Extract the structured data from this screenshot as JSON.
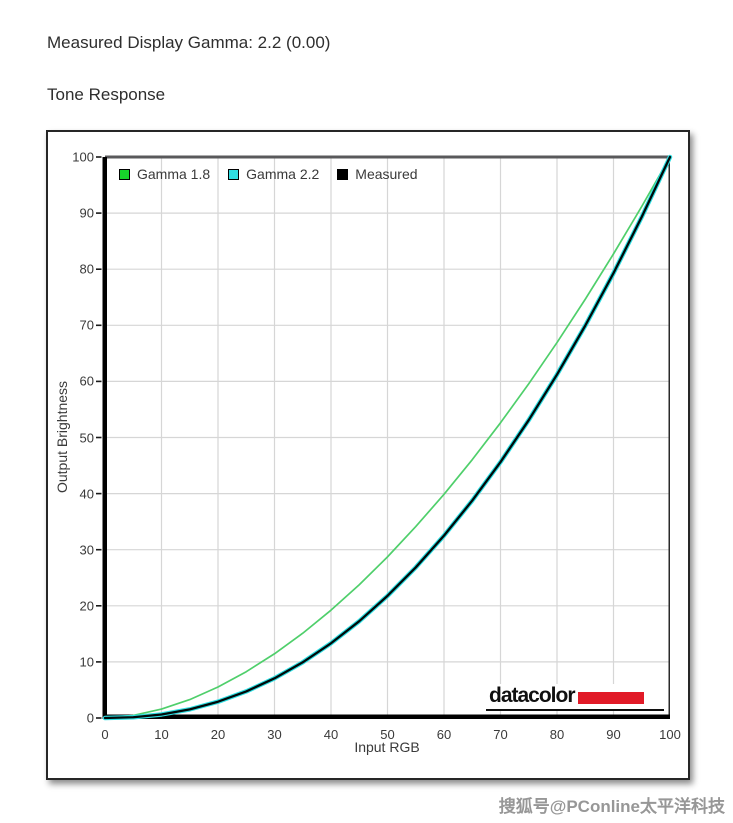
{
  "page": {
    "title": "Measured Display Gamma: 2.2 (0.00)",
    "subtitle": "Tone Response",
    "watermark": "搜狐号@PConline太平洋科技"
  },
  "colors": {
    "grid": "#d6d6d6",
    "spine_top": "#59595b",
    "spine_right": "#2a2a2a",
    "spine_left": "#000000",
    "spine_bottom": "#000000",
    "tick_mark": "#1a1a1a",
    "text": "#3a3a3a"
  },
  "chart_data": {
    "type": "line",
    "title": "Tone Response",
    "xlabel": "Input RGB",
    "ylabel": "Output Brightness",
    "xlim": [
      0,
      100
    ],
    "ylim": [
      0,
      100
    ],
    "grid": true,
    "legend_position": "top-left inside plot",
    "xticks": [
      0,
      10,
      20,
      30,
      40,
      50,
      60,
      70,
      80,
      90,
      100
    ],
    "yticks": [
      0,
      10,
      20,
      30,
      40,
      50,
      60,
      70,
      80,
      90,
      100
    ],
    "x": [
      0,
      5,
      10,
      15,
      20,
      25,
      30,
      35,
      40,
      45,
      50,
      55,
      60,
      65,
      70,
      75,
      80,
      85,
      90,
      95,
      100
    ],
    "series": [
      {
        "name": "Gamma 1.8",
        "gamma": 1.8,
        "swatch_color": "#17d52b",
        "line_color": "#4fcf6b",
        "line_width": 1.7,
        "values": [
          0,
          0.46,
          1.59,
          3.28,
          5.52,
          8.25,
          11.45,
          15.11,
          19.22,
          23.75,
          28.72,
          34.12,
          39.87,
          46.05,
          52.62,
          59.58,
          66.92,
          74.64,
          82.73,
          91.18,
          100
        ]
      },
      {
        "name": "Gamma 2.2",
        "gamma": 2.2,
        "swatch_color": "#2fdee2",
        "line_color": "#2edfe3",
        "line_width": 4.5,
        "values": [
          0,
          0.14,
          0.63,
          1.54,
          2.9,
          4.74,
          7.07,
          9.93,
          13.32,
          17.26,
          21.77,
          26.84,
          32.51,
          38.76,
          45.62,
          53.11,
          61.22,
          69.94,
          79.3,
          89.32,
          100
        ]
      },
      {
        "name": "Measured",
        "gamma": 2.2,
        "swatch_color": "#000000",
        "line_color": "#000a0a",
        "line_width": 2.3,
        "values": [
          0,
          0.14,
          0.63,
          1.54,
          2.9,
          4.74,
          7.07,
          9.93,
          13.32,
          17.26,
          21.77,
          26.84,
          32.51,
          38.76,
          45.62,
          53.11,
          61.22,
          69.94,
          79.3,
          89.32,
          100
        ]
      }
    ],
    "logo": {
      "text": "datacolor",
      "bar_color": "#e11a27"
    }
  }
}
